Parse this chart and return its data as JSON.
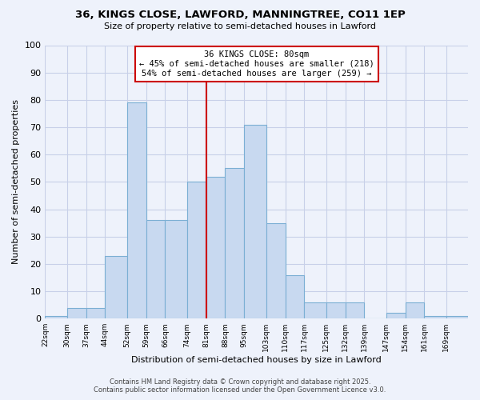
{
  "title": "36, KINGS CLOSE, LAWFORD, MANNINGTREE, CO11 1EP",
  "subtitle": "Size of property relative to semi-detached houses in Lawford",
  "xlabel": "Distribution of semi-detached houses by size in Lawford",
  "ylabel": "Number of semi-detached properties",
  "bin_labels": [
    "22sqm",
    "30sqm",
    "37sqm",
    "44sqm",
    "52sqm",
    "59sqm",
    "66sqm",
    "74sqm",
    "81sqm",
    "88sqm",
    "95sqm",
    "103sqm",
    "110sqm",
    "117sqm",
    "125sqm",
    "132sqm",
    "139sqm",
    "147sqm",
    "154sqm",
    "161sqm",
    "169sqm"
  ],
  "bin_edges": [
    22,
    30,
    37,
    44,
    52,
    59,
    66,
    74,
    81,
    88,
    95,
    103,
    110,
    117,
    125,
    132,
    139,
    147,
    154,
    161,
    169,
    177
  ],
  "bar_heights": [
    1,
    4,
    4,
    23,
    79,
    36,
    36,
    50,
    52,
    55,
    71,
    35,
    16,
    6,
    6,
    6,
    0,
    2,
    6,
    1,
    1
  ],
  "bar_color": "#c8d9f0",
  "bar_edge_color": "#7bafd4",
  "reference_line_x": 81,
  "reference_line_color": "#cc0000",
  "annotation_line1": "36 KINGS CLOSE: 80sqm",
  "annotation_line2": "← 45% of semi-detached houses are smaller (218)",
  "annotation_line3": "54% of semi-detached houses are larger (259) →",
  "annotation_box_facecolor": "white",
  "annotation_box_edgecolor": "#cc0000",
  "ylim": [
    0,
    100
  ],
  "yticks": [
    0,
    10,
    20,
    30,
    40,
    50,
    60,
    70,
    80,
    90,
    100
  ],
  "background_color": "#eef2fb",
  "grid_color": "#c8d0e8",
  "footer_line1": "Contains HM Land Registry data © Crown copyright and database right 2025.",
  "footer_line2": "Contains public sector information licensed under the Open Government Licence v3.0."
}
